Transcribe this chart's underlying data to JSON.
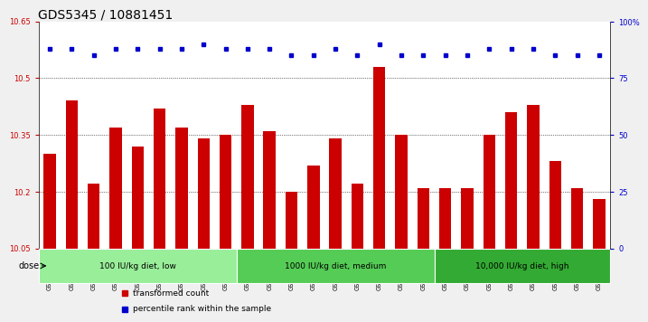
{
  "title": "GDS5345 / 10881451",
  "samples": [
    "GSM1502412",
    "GSM1502413",
    "GSM1502414",
    "GSM1502415",
    "GSM1502416",
    "GSM1502417",
    "GSM1502418",
    "GSM1502419",
    "GSM1502420",
    "GSM1502421",
    "GSM1502422",
    "GSM1502423",
    "GSM1502424",
    "GSM1502425",
    "GSM1502426",
    "GSM1502427",
    "GSM1502428",
    "GSM1502429",
    "GSM1502430",
    "GSM1502431",
    "GSM1502432",
    "GSM1502433",
    "GSM1502434",
    "GSM1502435",
    "GSM1502436",
    "GSM1502437"
  ],
  "bar_values": [
    10.3,
    10.44,
    10.22,
    10.37,
    10.32,
    10.42,
    10.37,
    10.34,
    10.35,
    10.43,
    10.36,
    10.2,
    10.27,
    10.34,
    10.22,
    10.53,
    10.35,
    10.21,
    10.21,
    10.21,
    10.35,
    10.41,
    10.43,
    10.28,
    10.21,
    10.18
  ],
  "percentile_values": [
    88,
    88,
    85,
    88,
    88,
    88,
    88,
    90,
    88,
    88,
    88,
    85,
    85,
    88,
    85,
    90,
    85,
    85,
    85,
    85,
    88,
    88,
    88,
    85,
    85,
    85
  ],
  "bar_color": "#cc0000",
  "percentile_color": "#0000cc",
  "ylim_left": [
    10.05,
    10.65
  ],
  "ylim_right": [
    0,
    100
  ],
  "yticks_left": [
    10.05,
    10.2,
    10.35,
    10.5,
    10.65
  ],
  "yticks_right": [
    0,
    25,
    50,
    75,
    100
  ],
  "ytick_labels_right": [
    "0",
    "25",
    "50",
    "75",
    "100%"
  ],
  "groups": [
    {
      "label": "100 IU/kg diet, low",
      "start": 0,
      "end": 9,
      "color": "#99ee99"
    },
    {
      "label": "1000 IU/kg diet, medium",
      "start": 9,
      "end": 18,
      "color": "#55cc55"
    },
    {
      "label": "10,000 IU/kg diet, high",
      "start": 18,
      "end": 26,
      "color": "#33aa33"
    }
  ],
  "dose_label": "dose",
  "legend_items": [
    {
      "label": "transformed count",
      "color": "#cc0000"
    },
    {
      "label": "percentile rank within the sample",
      "color": "#0000cc"
    }
  ],
  "plot_bg_color": "#ffffff",
  "fig_bg_color": "#f0f0f0",
  "tick_area_bg": "#d8d8d8",
  "title_fontsize": 10,
  "tick_fontsize": 6,
  "bar_width": 0.55
}
